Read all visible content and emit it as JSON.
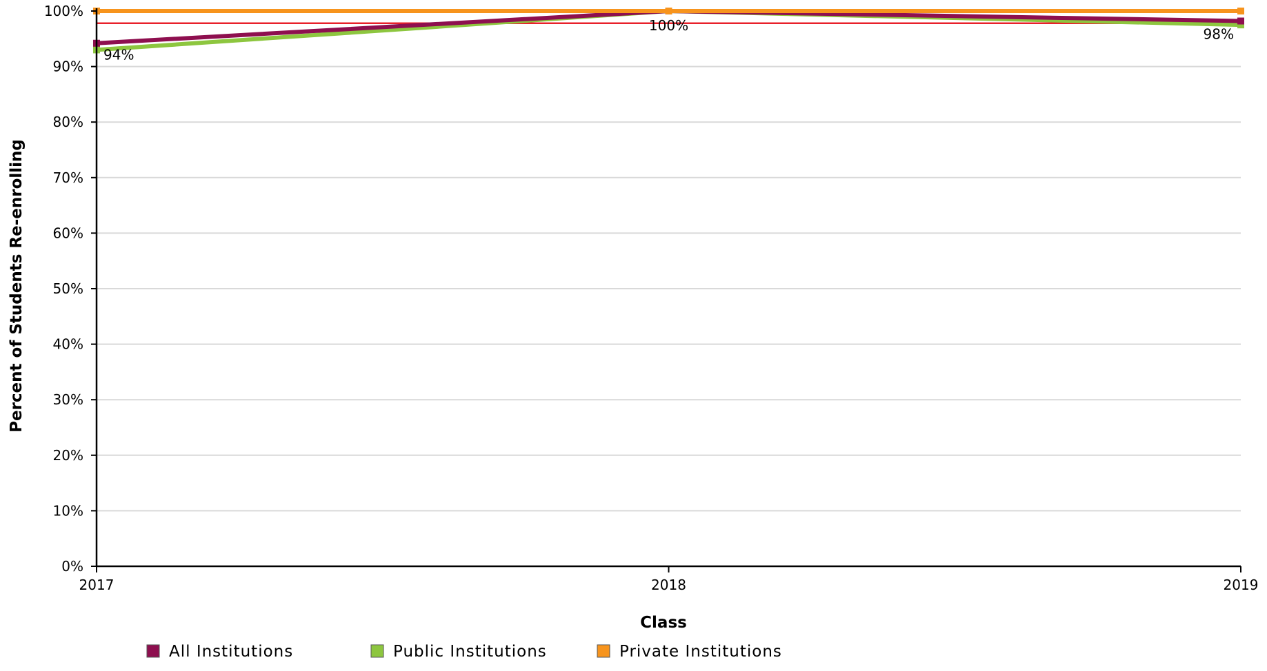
{
  "chart_data": {
    "type": "line",
    "title": "",
    "xlabel": "Class",
    "ylabel": "Percent of Students Re-enrolling",
    "x": [
      "2017",
      "2018",
      "2019"
    ],
    "ylim": [
      0,
      100
    ],
    "yticks": [
      0,
      10,
      20,
      30,
      40,
      50,
      60,
      70,
      80,
      90,
      100
    ],
    "ytick_labels": [
      "0%",
      "10%",
      "20%",
      "30%",
      "40%",
      "50%",
      "60%",
      "70%",
      "80%",
      "90%",
      "100%"
    ],
    "grid": true,
    "legend_position": "bottom",
    "series": [
      {
        "name": "All Institutions",
        "color": "#8e0f4f",
        "values": [
          94.2,
          100,
          98.2
        ],
        "labels": [
          "94%",
          "100%",
          "98%"
        ]
      },
      {
        "name": "Public Institutions",
        "color": "#8dc63f",
        "values": [
          93.0,
          100,
          97.5
        ]
      },
      {
        "name": "Private Institutions",
        "color": "#f7941d",
        "values": [
          100,
          100,
          100
        ]
      }
    ],
    "reference_line": {
      "value": 97.8,
      "color": "#e8202a"
    }
  }
}
